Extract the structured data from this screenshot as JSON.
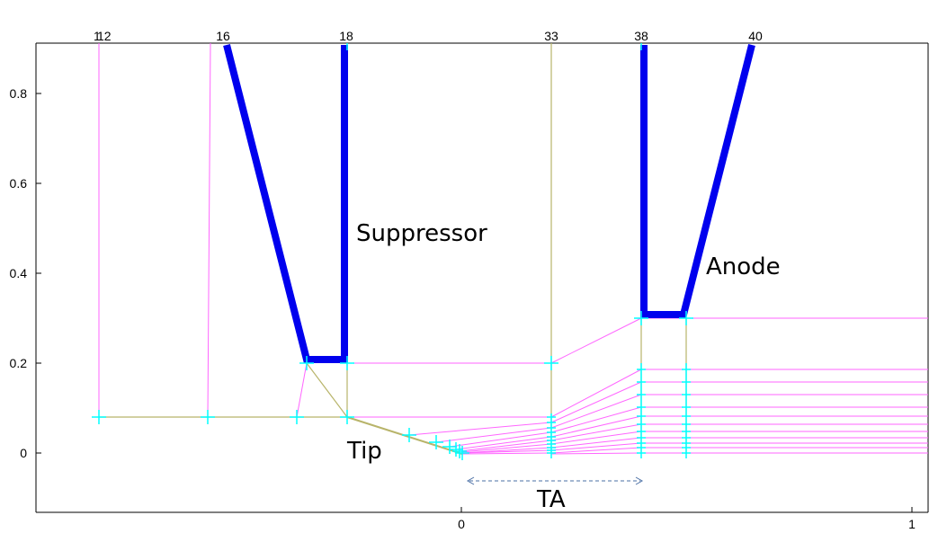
{
  "top_ticks": [
    "12",
    "16",
    "18",
    "33",
    "38",
    "40"
  ],
  "top_tick_overlap": "1",
  "y_ticks": [
    "0.8",
    "0.6",
    "0.4",
    "0.2",
    "0"
  ],
  "x_ticks": [
    "0",
    "1"
  ],
  "labels": {
    "suppressor": "Suppressor",
    "anode": "Anode",
    "tip": "Tip",
    "ta": "TA"
  },
  "colors": {
    "electrode": "#0000ee",
    "grid_pink": "#ff66ff",
    "grid_olive": "#b8b46a",
    "node_cyan": "#00ffff",
    "arrow": "#4a6fa5"
  }
}
